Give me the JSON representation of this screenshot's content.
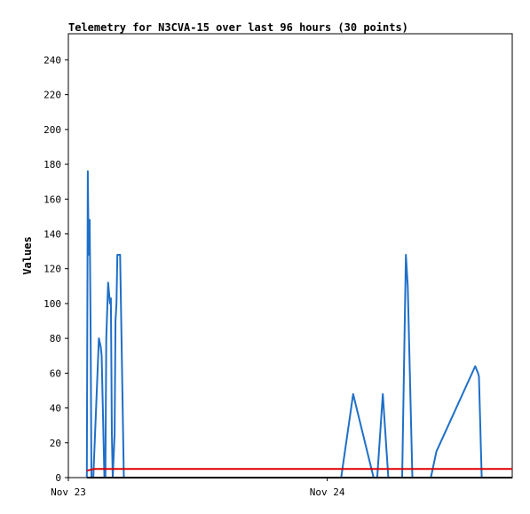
{
  "chart_data": {
    "type": "line",
    "title": "Telemetry for N3CVA-15 over last 96 hours (30 points)",
    "xlabel": "",
    "ylabel": "Values",
    "ylim": [
      0,
      255
    ],
    "yticks": [
      0,
      20,
      40,
      60,
      80,
      100,
      120,
      140,
      160,
      180,
      200,
      220,
      240
    ],
    "xlim": [
      0,
      480
    ],
    "xticks": [
      {
        "label": "Nov 23",
        "value": 0
      },
      {
        "label": "Nov 24",
        "value": 280
      }
    ],
    "grid": false,
    "legend": "none",
    "series": [
      {
        "color": "#1f6fc8",
        "x": [
          20,
          21,
          22,
          23,
          24,
          25,
          27,
          33,
          35,
          36,
          39,
          40,
          41,
          43,
          45,
          46,
          47,
          48,
          50,
          51,
          52,
          53,
          54,
          56,
          60,
          65,
          285,
          295,
          308,
          330,
          334,
          340,
          346,
          361,
          365,
          367,
          372,
          392,
          398,
          440,
          443,
          444,
          447,
          450
        ],
        "values": [
          0,
          176,
          128,
          148,
          90,
          0,
          0,
          80,
          75,
          70,
          0,
          0,
          80,
          112,
          100,
          103,
          25,
          0,
          25,
          90,
          100,
          128,
          128,
          128,
          0,
          0,
          0,
          0,
          48,
          0,
          0,
          48,
          0,
          0,
          128,
          110,
          0,
          0,
          15,
          64,
          60,
          58,
          0,
          0
        ]
      },
      {
        "color": "#dd0000",
        "x": [
          20,
          28,
          40,
          200,
          480
        ],
        "values": [
          4,
          5,
          5,
          5,
          5
        ]
      },
      {
        "color": "#000000",
        "x": [
          20,
          480
        ],
        "values": [
          0,
          0
        ]
      }
    ]
  }
}
